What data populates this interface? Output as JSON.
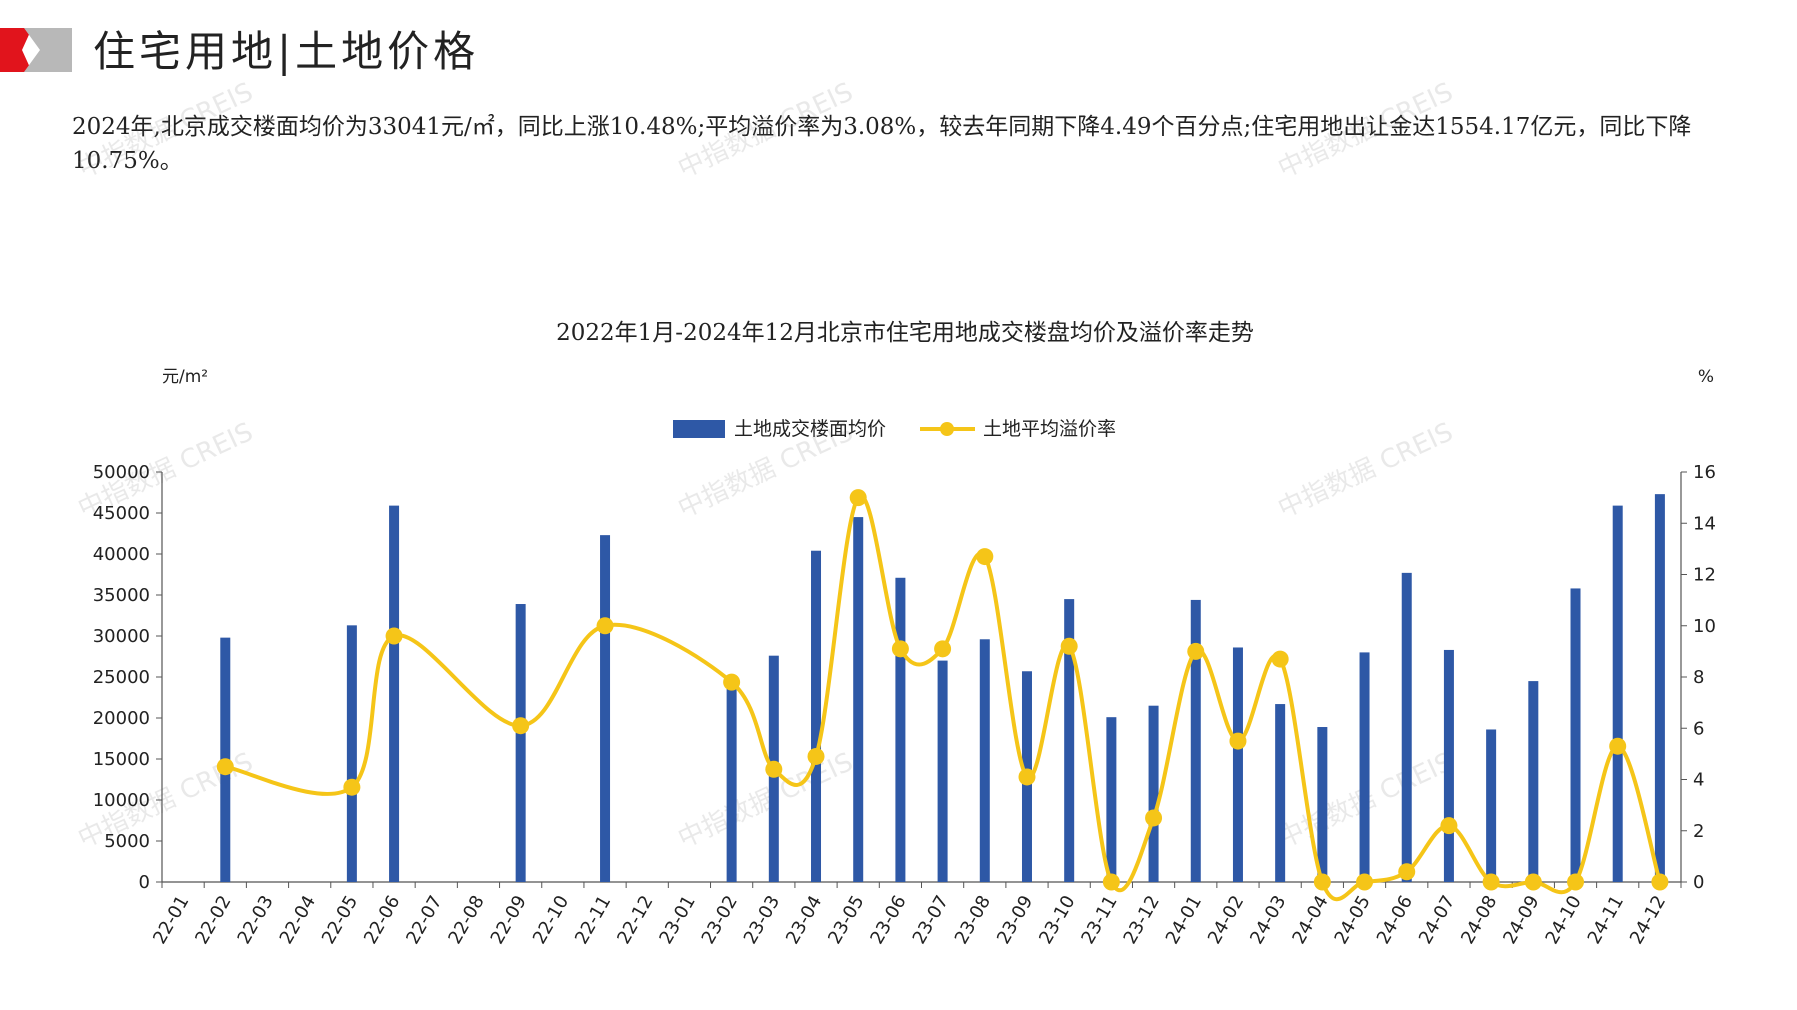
{
  "header": {
    "title": "住宅用地|土地价格",
    "colors": {
      "accent_red": "#e1141c",
      "accent_gray": "#b5b5b5"
    }
  },
  "summary": {
    "text": "2024年,北京成交楼面均价为33041元/㎡，同比上涨10.48%;平均溢价率为3.08%，较去年同期下降4.49个百分点;住宅用地出让金达1554.17亿元，同比下降10.75%。"
  },
  "watermark": {
    "text": "中指数据 CREIS"
  },
  "chart_data": {
    "type": "bar",
    "title": "2022年1月-2024年12月北京市住宅用地成交楼盘均价及溢价率走势",
    "y_unit_left": "元/m²",
    "y_unit_right": "%",
    "categories": [
      "22-01",
      "22-02",
      "22-03",
      "22-04",
      "22-05",
      "22-06",
      "22-07",
      "22-08",
      "22-09",
      "22-10",
      "22-11",
      "22-12",
      "23-01",
      "23-02",
      "23-03",
      "23-04",
      "23-05",
      "23-06",
      "23-07",
      "23-08",
      "23-09",
      "23-10",
      "23-11",
      "23-12",
      "24-01",
      "24-02",
      "24-03",
      "24-04",
      "24-05",
      "24-06",
      "24-07",
      "24-08",
      "24-09",
      "24-10",
      "24-11",
      "24-12"
    ],
    "ylim_left": [
      0,
      50000
    ],
    "yticks_left": [
      0,
      5000,
      10000,
      15000,
      20000,
      25000,
      30000,
      35000,
      40000,
      45000,
      50000
    ],
    "ylim_right": [
      0,
      16
    ],
    "yticks_right": [
      0,
      2,
      4,
      6,
      8,
      10,
      12,
      14,
      16
    ],
    "legend_position": "top-center",
    "grid": false,
    "series": [
      {
        "name": "土地成交楼面均价",
        "type": "bar",
        "axis": "left",
        "color": "#2e58a6",
        "values": [
          null,
          29800,
          null,
          null,
          31300,
          45900,
          null,
          null,
          33900,
          null,
          42300,
          null,
          null,
          24300,
          27600,
          40400,
          44500,
          37100,
          27000,
          29600,
          25700,
          34500,
          20100,
          21500,
          34400,
          28600,
          21700,
          18900,
          28000,
          37700,
          28300,
          18600,
          24500,
          35800,
          45900,
          47300
        ]
      },
      {
        "name": "土地平均溢价率",
        "type": "line",
        "smooth": true,
        "axis": "right",
        "color": "#f5c518",
        "values": [
          null,
          4.5,
          null,
          null,
          3.7,
          9.6,
          null,
          null,
          6.1,
          null,
          10.0,
          null,
          null,
          7.8,
          4.4,
          4.9,
          15.0,
          9.1,
          9.1,
          12.7,
          4.1,
          9.2,
          0.0,
          2.5,
          9.0,
          5.5,
          8.7,
          0.0,
          0.0,
          0.4,
          2.2,
          0.0,
          0.0,
          0.0,
          5.3,
          0.0
        ]
      }
    ]
  }
}
